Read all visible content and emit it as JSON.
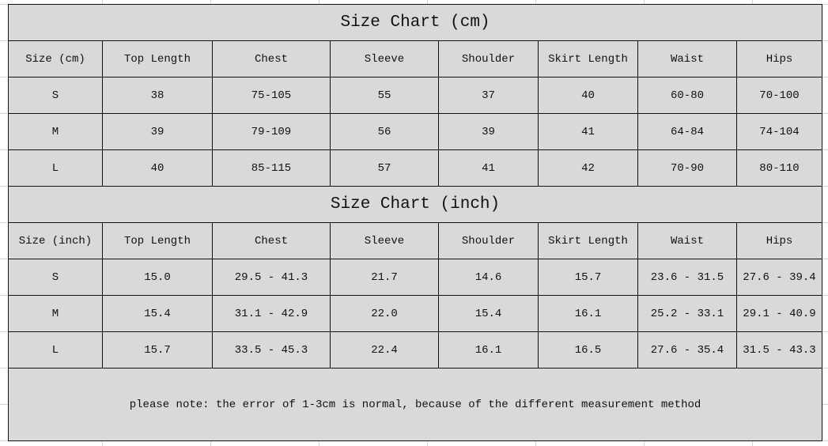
{
  "tables": [
    {
      "title": "Size Chart (cm)",
      "headers": [
        "Size (cm)",
        "Top Length",
        "Chest",
        "Sleeve",
        "Shoulder",
        "Skirt Length",
        "Waist",
        "Hips"
      ],
      "rows": [
        [
          "S",
          "38",
          "75-105",
          "55",
          "37",
          "40",
          "60-80",
          "70-100"
        ],
        [
          "M",
          "39",
          "79-109",
          "56",
          "39",
          "41",
          "64-84",
          "74-104"
        ],
        [
          "L",
          "40",
          "85-115",
          "57",
          "41",
          "42",
          "70-90",
          "80-110"
        ]
      ]
    },
    {
      "title": "Size Chart (inch)",
      "headers": [
        "Size (inch)",
        "Top Length",
        "Chest",
        "Sleeve",
        "Shoulder",
        "Skirt Length",
        "Waist",
        "Hips"
      ],
      "rows": [
        [
          "S",
          "15.0",
          "29.5 - 41.3",
          "21.7",
          "14.6",
          "15.7",
          "23.6 - 31.5",
          "27.6 - 39.4"
        ],
        [
          "M",
          "15.4",
          "31.1 - 42.9",
          "22.0",
          "15.4",
          "16.1",
          "25.2 - 33.1",
          "29.1 - 40.9"
        ],
        [
          "L",
          "15.7",
          "33.5 - 45.3",
          "22.4",
          "16.1",
          "16.5",
          "27.6 - 35.4",
          "31.5 - 43.3"
        ]
      ]
    }
  ],
  "note": "please note: the error of 1-3cm is normal, because of the different measurement method",
  "colors": {
    "cell_background": "#d9d9d9",
    "border": "#111111"
  }
}
